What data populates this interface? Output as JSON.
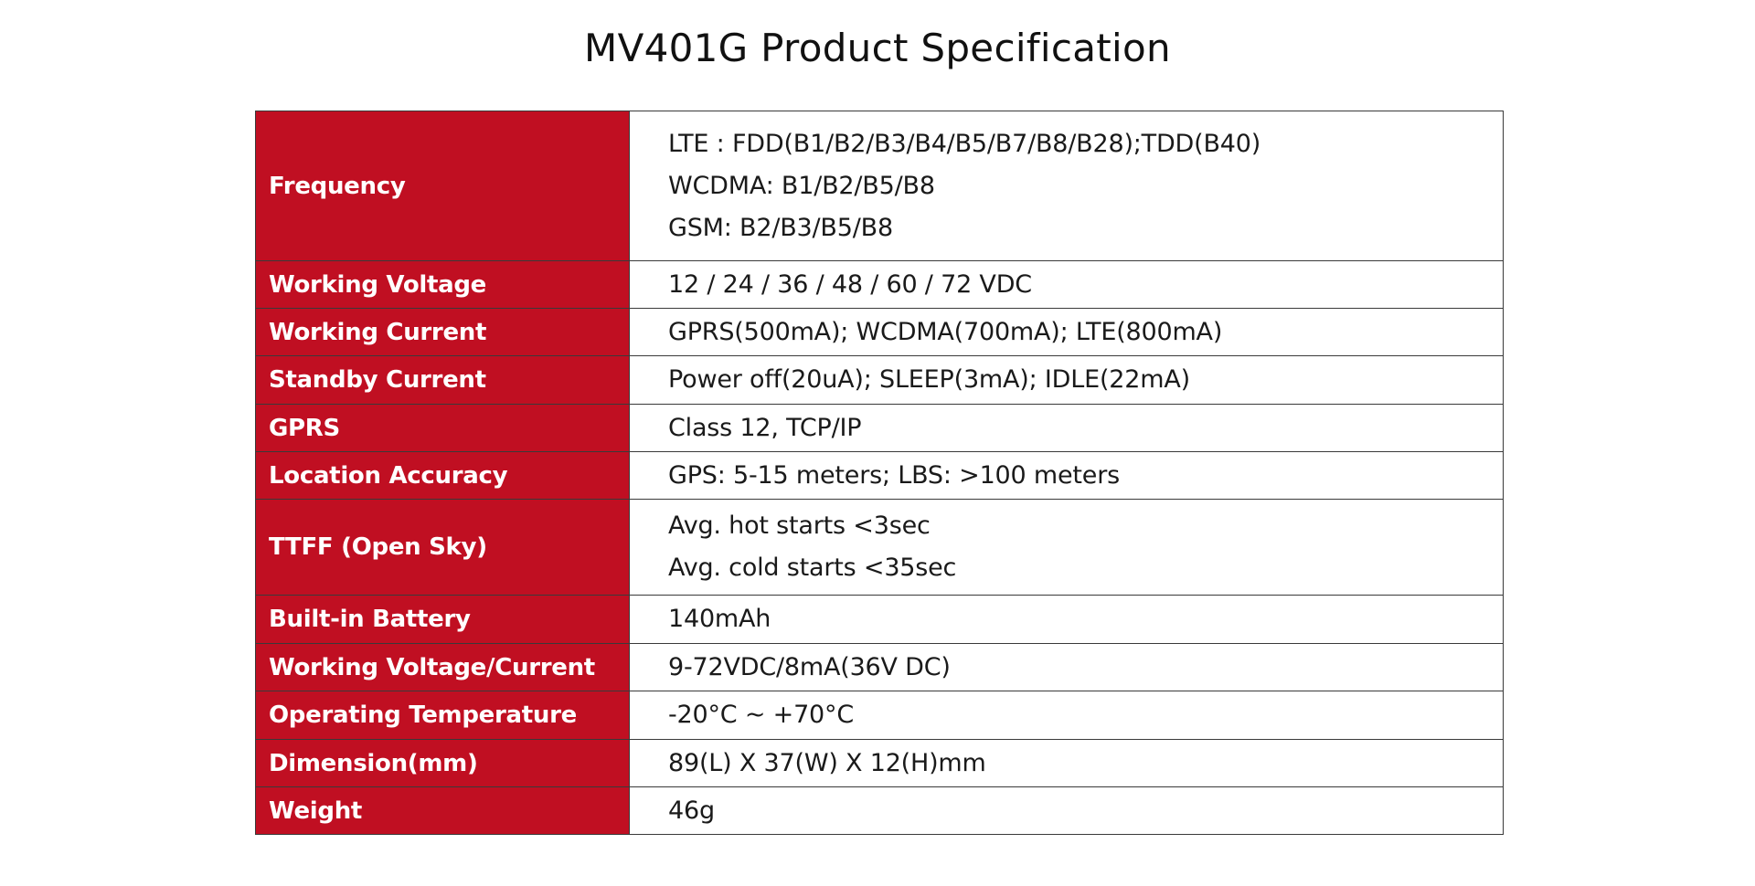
{
  "title": "MV401G Product Specification",
  "specs": [
    {
      "label": "Frequency",
      "lines": [
        "LTE : FDD(B1/B2/B3/B4/B5/B7/B8/B28);TDD(B40)",
        "WCDMA:  B1/B2/B5/B8",
        "GSM: B2/B3/B5/B8"
      ]
    },
    {
      "label": "Working Voltage",
      "lines": [
        "12 / 24 / 36 / 48 / 60 / 72 VDC"
      ]
    },
    {
      "label": "Working Current",
      "lines": [
        "GPRS(500mA); WCDMA(700mA); LTE(800mA)"
      ]
    },
    {
      "label": "Standby Current",
      "lines": [
        "Power off(20uA); SLEEP(3mA); IDLE(22mA)"
      ]
    },
    {
      "label": "GPRS",
      "lines": [
        "Class 12, TCP/IP"
      ]
    },
    {
      "label": "Location Accuracy",
      "lines": [
        "GPS: 5-15 meters; LBS: >100 meters"
      ]
    },
    {
      "label": "TTFF (Open Sky)",
      "lines": [
        "Avg. hot starts <3sec",
        "Avg. cold starts <35sec"
      ]
    },
    {
      "label": "Built-in Battery",
      "lines": [
        "140mAh"
      ]
    },
    {
      "label": "Working Voltage/Current",
      "lines": [
        "9-72VDC/8mA(36V DC)"
      ]
    },
    {
      "label": "Operating Temperature",
      "lines": [
        "-20°C ~ +70°C"
      ]
    },
    {
      "label": "Dimension(mm)",
      "lines": [
        "89(L) X 37(W) X 12(H)mm"
      ]
    },
    {
      "label": "Weight",
      "lines": [
        "46g"
      ]
    }
  ],
  "colors": {
    "label_background": "#c00f22",
    "label_text": "#ffffff",
    "border": "#3a3a3a"
  }
}
